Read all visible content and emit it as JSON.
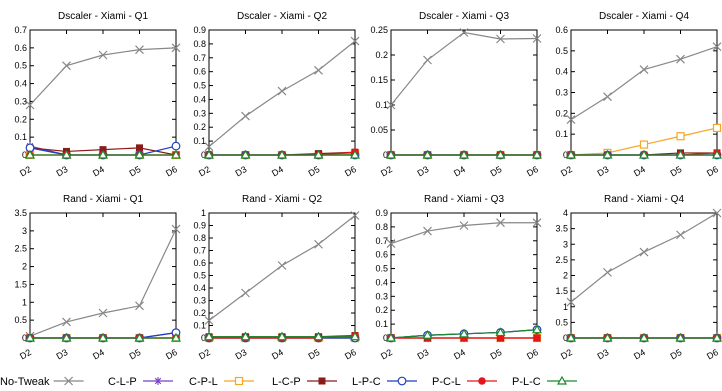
{
  "chart_data": {
    "series_styles": [
      {
        "name": "No-Tweak",
        "color": "#888888",
        "marker": "x"
      },
      {
        "name": "C-L-P",
        "color": "#7b3fc4",
        "marker": "star"
      },
      {
        "name": "C-P-L",
        "color": "#f5a623",
        "marker": "square-open"
      },
      {
        "name": "L-C-P",
        "color": "#8b1a1a",
        "marker": "square-filled"
      },
      {
        "name": "L-P-C",
        "color": "#1f3fbf",
        "marker": "circle-open"
      },
      {
        "name": "P-C-L",
        "color": "#e8141c",
        "marker": "circle-filled"
      },
      {
        "name": "P-L-C",
        "color": "#1a8a2a",
        "marker": "triangle-open"
      }
    ],
    "charts": [
      {
        "type": "line",
        "title": "Dscaler - Xiami - Q1",
        "x": [
          "D2",
          "D3",
          "D4",
          "D5",
          "D6"
        ],
        "ylim": [
          0,
          0.7
        ],
        "yticks": [
          "0",
          "0.1",
          "0.2",
          "0.3",
          "0.4",
          "0.5",
          "0.6",
          "0.7"
        ],
        "yticks_values": [
          0,
          0.1,
          0.2,
          0.3,
          0.4,
          0.5,
          0.6,
          0.7
        ],
        "series": [
          {
            "name": "No-Tweak",
            "values": [
              0.28,
              0.5,
              0.56,
              0.59,
              0.6
            ]
          },
          {
            "name": "C-L-P",
            "values": [
              0.05,
              0.0,
              0.0,
              0.0,
              0.0
            ]
          },
          {
            "name": "C-P-L",
            "values": [
              0.0,
              0.0,
              0.0,
              0.0,
              0.0
            ]
          },
          {
            "name": "L-C-P",
            "values": [
              0.04,
              0.02,
              0.03,
              0.04,
              0.0
            ]
          },
          {
            "name": "L-P-C",
            "values": [
              0.04,
              0.0,
              0.0,
              0.0,
              0.05
            ]
          },
          {
            "name": "P-C-L",
            "values": [
              0.0,
              0.0,
              0.0,
              0.0,
              0.0
            ]
          },
          {
            "name": "P-L-C",
            "values": [
              0.0,
              0.0,
              0.0,
              0.0,
              0.0
            ]
          }
        ]
      },
      {
        "type": "line",
        "title": "Dscaler - Xiami - Q2",
        "x": [
          "D2",
          "D3",
          "D4",
          "D5",
          "D6"
        ],
        "ylim": [
          0,
          0.9
        ],
        "yticks": [
          "0",
          "0.1",
          "0.2",
          "0.3",
          "0.4",
          "0.5",
          "0.6",
          "0.7",
          "0.8",
          "0.9"
        ],
        "yticks_values": [
          0,
          0.1,
          0.2,
          0.3,
          0.4,
          0.5,
          0.6,
          0.7,
          0.8,
          0.9
        ],
        "series": [
          {
            "name": "No-Tweak",
            "values": [
              0.06,
              0.28,
              0.46,
              0.61,
              0.82
            ]
          },
          {
            "name": "C-L-P",
            "values": [
              0.0,
              0.0,
              0.0,
              0.0,
              0.0
            ]
          },
          {
            "name": "C-P-L",
            "values": [
              0.0,
              0.0,
              0.0,
              0.0,
              0.01
            ]
          },
          {
            "name": "L-C-P",
            "values": [
              0.0,
              0.0,
              0.0,
              0.01,
              0.02
            ]
          },
          {
            "name": "L-P-C",
            "values": [
              0.0,
              0.0,
              0.0,
              0.0,
              0.0
            ]
          },
          {
            "name": "P-C-L",
            "values": [
              0.0,
              0.0,
              0.0,
              0.0,
              0.02
            ]
          },
          {
            "name": "P-L-C",
            "values": [
              0.0,
              0.0,
              0.0,
              0.0,
              0.0
            ]
          }
        ]
      },
      {
        "type": "line",
        "title": "Dscaler - Xiami - Q3",
        "x": [
          "D2",
          "D3",
          "D4",
          "D5",
          "D6"
        ],
        "ylim": [
          0,
          0.25
        ],
        "yticks": [
          "0",
          "0.05",
          "0.1",
          "0.15",
          "0.2",
          "0.25"
        ],
        "yticks_values": [
          0,
          0.05,
          0.1,
          0.15,
          0.2,
          0.25
        ],
        "series": [
          {
            "name": "No-Tweak",
            "values": [
              0.1,
              0.19,
              0.245,
              0.232,
              0.233
            ]
          },
          {
            "name": "C-L-P",
            "values": [
              0.0,
              0.0,
              0.0,
              0.0,
              0.0
            ]
          },
          {
            "name": "C-P-L",
            "values": [
              0.0,
              0.0,
              0.0,
              0.0,
              0.0
            ]
          },
          {
            "name": "L-C-P",
            "values": [
              0.0,
              0.0,
              0.0,
              0.0,
              0.0
            ]
          },
          {
            "name": "L-P-C",
            "values": [
              0.0,
              0.0,
              0.0,
              0.0,
              0.0
            ]
          },
          {
            "name": "P-C-L",
            "values": [
              0.0,
              0.0,
              0.0,
              0.0,
              0.0
            ]
          },
          {
            "name": "P-L-C",
            "values": [
              0.0,
              0.0,
              0.0,
              0.0,
              0.0
            ]
          }
        ]
      },
      {
        "type": "line",
        "title": "Dscaler - Xiami - Q4",
        "x": [
          "D2",
          "D3",
          "D4",
          "D5",
          "D6"
        ],
        "ylim": [
          0,
          0.6
        ],
        "yticks": [
          "0",
          "0.1",
          "0.2",
          "0.3",
          "0.4",
          "0.5",
          "0.6"
        ],
        "yticks_values": [
          0,
          0.1,
          0.2,
          0.3,
          0.4,
          0.5,
          0.6
        ],
        "series": [
          {
            "name": "No-Tweak",
            "values": [
              0.17,
              0.28,
              0.41,
              0.46,
              0.52
            ]
          },
          {
            "name": "C-L-P",
            "values": [
              0.0,
              0.0,
              0.0,
              0.0,
              0.0
            ]
          },
          {
            "name": "C-P-L",
            "values": [
              0.0,
              0.01,
              0.05,
              0.09,
              0.13
            ]
          },
          {
            "name": "L-C-P",
            "values": [
              0.0,
              0.0,
              0.0,
              0.01,
              0.01
            ]
          },
          {
            "name": "L-P-C",
            "values": [
              0.0,
              0.0,
              0.0,
              0.0,
              0.0
            ]
          },
          {
            "name": "P-C-L",
            "values": [
              0.0,
              0.0,
              0.0,
              0.0,
              0.01
            ]
          },
          {
            "name": "P-L-C",
            "values": [
              0.0,
              0.0,
              0.0,
              0.0,
              0.0
            ]
          }
        ]
      },
      {
        "type": "line",
        "title": "Rand - Xiami - Q1",
        "x": [
          "D2",
          "D3",
          "D4",
          "D5",
          "D6"
        ],
        "ylim": [
          0,
          3.5
        ],
        "yticks": [
          "0",
          "0.5",
          "1",
          "1.5",
          "2",
          "2.5",
          "3",
          "3.5"
        ],
        "yticks_values": [
          0,
          0.5,
          1,
          1.5,
          2,
          2.5,
          3,
          3.5
        ],
        "series": [
          {
            "name": "No-Tweak",
            "values": [
              0.05,
              0.45,
              0.7,
              0.9,
              3.05
            ]
          },
          {
            "name": "C-L-P",
            "values": [
              0.0,
              0.0,
              0.0,
              0.0,
              0.15
            ]
          },
          {
            "name": "C-P-L",
            "values": [
              0.0,
              0.0,
              0.0,
              0.0,
              0.0
            ]
          },
          {
            "name": "L-C-P",
            "values": [
              0.0,
              0.0,
              0.0,
              0.0,
              0.0
            ]
          },
          {
            "name": "L-P-C",
            "values": [
              0.0,
              0.0,
              0.0,
              0.0,
              0.15
            ]
          },
          {
            "name": "P-C-L",
            "values": [
              0.0,
              0.0,
              0.0,
              0.0,
              0.0
            ]
          },
          {
            "name": "P-L-C",
            "values": [
              0.0,
              0.0,
              0.0,
              0.0,
              0.0
            ]
          }
        ]
      },
      {
        "type": "line",
        "title": "Rand - Xiami - Q2",
        "x": [
          "D2",
          "D3",
          "D4",
          "D5",
          "D6"
        ],
        "ylim": [
          0,
          1
        ],
        "yticks": [
          "0",
          "0.1",
          "0.2",
          "0.3",
          "0.4",
          "0.5",
          "0.6",
          "0.7",
          "0.8",
          "0.9",
          "1"
        ],
        "yticks_values": [
          0,
          0.1,
          0.2,
          0.3,
          0.4,
          0.5,
          0.6,
          0.7,
          0.8,
          0.9,
          1
        ],
        "series": [
          {
            "name": "No-Tweak",
            "values": [
              0.14,
              0.36,
              0.58,
              0.75,
              0.98
            ]
          },
          {
            "name": "C-L-P",
            "values": [
              0.0,
              0.0,
              0.0,
              0.0,
              0.0
            ]
          },
          {
            "name": "C-P-L",
            "values": [
              0.0,
              0.0,
              0.0,
              0.0,
              0.0
            ]
          },
          {
            "name": "L-C-P",
            "values": [
              0.01,
              0.01,
              0.01,
              0.01,
              0.02
            ]
          },
          {
            "name": "L-P-C",
            "values": [
              0.0,
              0.0,
              0.0,
              0.0,
              0.0
            ]
          },
          {
            "name": "P-C-L",
            "values": [
              0.0,
              0.0,
              0.0,
              0.0,
              0.02
            ]
          },
          {
            "name": "P-L-C",
            "values": [
              0.01,
              0.01,
              0.01,
              0.01,
              0.01
            ]
          }
        ]
      },
      {
        "type": "line",
        "title": "Rand - Xiami - Q3",
        "x": [
          "D2",
          "D3",
          "D4",
          "D5",
          "D6"
        ],
        "ylim": [
          0,
          0.9
        ],
        "yticks": [
          "0",
          "0.1",
          "0.2",
          "0.3",
          "0.4",
          "0.5",
          "0.6",
          "0.7",
          "0.8",
          "0.9"
        ],
        "yticks_values": [
          0,
          0.1,
          0.2,
          0.3,
          0.4,
          0.5,
          0.6,
          0.7,
          0.8,
          0.9
        ],
        "series": [
          {
            "name": "No-Tweak",
            "values": [
              0.68,
              0.77,
              0.81,
              0.83,
              0.83
            ]
          },
          {
            "name": "C-L-P",
            "values": [
              0.0,
              0.02,
              0.03,
              0.04,
              0.06
            ]
          },
          {
            "name": "C-P-L",
            "values": [
              0.0,
              0.0,
              0.0,
              0.0,
              0.0
            ]
          },
          {
            "name": "L-C-P",
            "values": [
              0.0,
              0.0,
              0.0,
              0.0,
              0.0
            ]
          },
          {
            "name": "L-P-C",
            "values": [
              0.0,
              0.02,
              0.03,
              0.04,
              0.06
            ]
          },
          {
            "name": "P-C-L",
            "values": [
              0.0,
              0.0,
              0.0,
              0.0,
              0.0
            ]
          },
          {
            "name": "P-L-C",
            "values": [
              0.0,
              0.02,
              0.03,
              0.04,
              0.06
            ]
          }
        ]
      },
      {
        "type": "line",
        "title": "Rand - Xiami - Q4",
        "x": [
          "D2",
          "D3",
          "D4",
          "D5",
          "D6"
        ],
        "ylim": [
          0,
          4
        ],
        "yticks": [
          "0",
          "0.5",
          "1",
          "1.5",
          "2",
          "2.5",
          "3",
          "3.5",
          "4"
        ],
        "yticks_values": [
          0,
          0.5,
          1,
          1.5,
          2,
          2.5,
          3,
          3.5,
          4
        ],
        "series": [
          {
            "name": "No-Tweak",
            "values": [
              1.15,
              2.1,
              2.75,
              3.3,
              4.0
            ]
          },
          {
            "name": "C-L-P",
            "values": [
              0.0,
              0.0,
              0.0,
              0.0,
              0.0
            ]
          },
          {
            "name": "C-P-L",
            "values": [
              0.0,
              0.0,
              0.0,
              0.0,
              0.0
            ]
          },
          {
            "name": "L-C-P",
            "values": [
              0.0,
              0.0,
              0.0,
              0.0,
              0.0
            ]
          },
          {
            "name": "L-P-C",
            "values": [
              0.0,
              0.0,
              0.0,
              0.0,
              0.0
            ]
          },
          {
            "name": "P-C-L",
            "values": [
              0.0,
              0.0,
              0.0,
              0.0,
              0.0
            ]
          },
          {
            "name": "P-L-C",
            "values": [
              0.0,
              0.0,
              0.0,
              0.0,
              0.0
            ]
          }
        ]
      }
    ],
    "legend": {
      "placement": "bottom",
      "entries": [
        "No-Tweak",
        "C-L-P",
        "C-P-L",
        "L-C-P",
        "L-P-C",
        "P-C-L",
        "P-L-C"
      ]
    }
  }
}
